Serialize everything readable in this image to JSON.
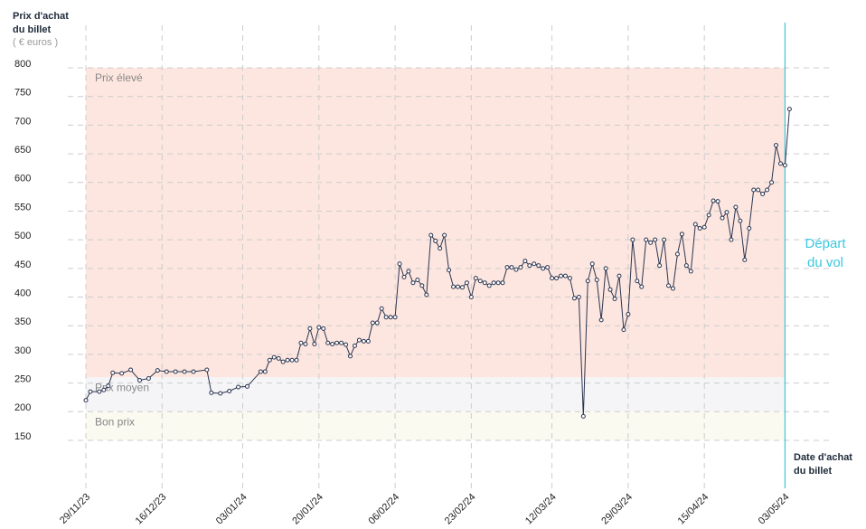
{
  "chart_data": {
    "type": "line",
    "y_label": [
      "Prix d'achat",
      "du billet"
    ],
    "y_unit": "( € euros )",
    "x_label": [
      "Date d'achat",
      "du billet"
    ],
    "annotation": {
      "x": "2024-05-03",
      "lines": [
        "Départ",
        "du vol"
      ],
      "color": "#3cc8e0"
    },
    "bands": [
      {
        "label": "Prix élevé",
        "from": 260,
        "to": 800,
        "color": "#fde6df"
      },
      {
        "label": "Prix moyen",
        "from": 200,
        "to": 260,
        "color": "#f5f5f7"
      },
      {
        "label": "Bon prix",
        "from": 150,
        "to": 200,
        "color": "#fafaf0"
      }
    ],
    "color": "#2b3550",
    "grid": true,
    "xlim": [
      "2023-11-29",
      "2024-05-13"
    ],
    "xticks": [
      {
        "value": "2023-11-29",
        "label": "29/11/23"
      },
      {
        "value": "2023-12-16",
        "label": "16/12/23"
      },
      {
        "value": "2024-01-03",
        "label": "03/01/24"
      },
      {
        "value": "2024-01-20",
        "label": "20/01/24"
      },
      {
        "value": "2024-02-06",
        "label": "06/02/24"
      },
      {
        "value": "2024-02-23",
        "label": "23/02/24"
      },
      {
        "value": "2024-03-12",
        "label": "12/03/24"
      },
      {
        "value": "2024-03-29",
        "label": "29/03/24"
      },
      {
        "value": "2024-04-15",
        "label": "15/04/24"
      },
      {
        "value": "2024-05-03",
        "label": "03/05/24"
      }
    ],
    "ylim": [
      150,
      800
    ],
    "yticks": [
      150,
      200,
      250,
      300,
      350,
      400,
      450,
      500,
      550,
      600,
      650,
      700,
      750,
      800
    ],
    "x": [
      "2023-11-29",
      "2023-11-30",
      "2023-12-02",
      "2023-12-03",
      "2023-12-04",
      "2023-12-05",
      "2023-12-07",
      "2023-12-09",
      "2023-12-11",
      "2023-12-13",
      "2023-12-15",
      "2023-12-17",
      "2023-12-19",
      "2023-12-21",
      "2023-12-23",
      "2023-12-26",
      "2023-12-27",
      "2023-12-29",
      "2023-12-31",
      "2024-01-02",
      "2024-01-04",
      "2024-01-07",
      "2024-01-08",
      "2024-01-09",
      "2024-01-10",
      "2024-01-11",
      "2024-01-12",
      "2024-01-13",
      "2024-01-14",
      "2024-01-15",
      "2024-01-16",
      "2024-01-17",
      "2024-01-18",
      "2024-01-19",
      "2024-01-20",
      "2024-01-21",
      "2024-01-22",
      "2024-01-23",
      "2024-01-24",
      "2024-01-25",
      "2024-01-26",
      "2024-01-27",
      "2024-01-28",
      "2024-01-29",
      "2024-01-30",
      "2024-01-31",
      "2024-02-01",
      "2024-02-02",
      "2024-02-03",
      "2024-02-04",
      "2024-02-05",
      "2024-02-06",
      "2024-02-07",
      "2024-02-08",
      "2024-02-09",
      "2024-02-10",
      "2024-02-11",
      "2024-02-12",
      "2024-02-13",
      "2024-02-14",
      "2024-02-15",
      "2024-02-16",
      "2024-02-17",
      "2024-02-18",
      "2024-02-19",
      "2024-02-20",
      "2024-02-21",
      "2024-02-22",
      "2024-02-23",
      "2024-02-24",
      "2024-02-25",
      "2024-02-26",
      "2024-02-27",
      "2024-02-28",
      "2024-02-29",
      "2024-03-01",
      "2024-03-02",
      "2024-03-03",
      "2024-03-04",
      "2024-03-05",
      "2024-03-06",
      "2024-03-07",
      "2024-03-08",
      "2024-03-09",
      "2024-03-10",
      "2024-03-11",
      "2024-03-12",
      "2024-03-13",
      "2024-03-14",
      "2024-03-15",
      "2024-03-16",
      "2024-03-17",
      "2024-03-18",
      "2024-03-19",
      "2024-03-20",
      "2024-03-21",
      "2024-03-22",
      "2024-03-23",
      "2024-03-24",
      "2024-03-25",
      "2024-03-26",
      "2024-03-27",
      "2024-03-28",
      "2024-03-29",
      "2024-03-30",
      "2024-03-31",
      "2024-04-01",
      "2024-04-02",
      "2024-04-03",
      "2024-04-04",
      "2024-04-05",
      "2024-04-06",
      "2024-04-07",
      "2024-04-08",
      "2024-04-09",
      "2024-04-10",
      "2024-04-11",
      "2024-04-12",
      "2024-04-13",
      "2024-04-14",
      "2024-04-15",
      "2024-04-16",
      "2024-04-17",
      "2024-04-18",
      "2024-04-19",
      "2024-04-20",
      "2024-04-21",
      "2024-04-22",
      "2024-04-23",
      "2024-04-24",
      "2024-04-25",
      "2024-04-26",
      "2024-04-27",
      "2024-04-28",
      "2024-04-29",
      "2024-04-30",
      "2024-05-01",
      "2024-05-02",
      "2024-05-03",
      "2024-05-04"
    ],
    "values": [
      220,
      235,
      235,
      238,
      245,
      268,
      267,
      273,
      255,
      258,
      272,
      270,
      270,
      270,
      270,
      273,
      233,
      232,
      236,
      243,
      244,
      270,
      270,
      290,
      295,
      293,
      287,
      290,
      290,
      290,
      320,
      318,
      345,
      318,
      347,
      345,
      320,
      318,
      320,
      320,
      317,
      297,
      315,
      325,
      323,
      323,
      355,
      355,
      380,
      365,
      365,
      365,
      458,
      435,
      445,
      425,
      430,
      420,
      404,
      508,
      498,
      485,
      508,
      447,
      418,
      418,
      417,
      425,
      400,
      433,
      428,
      425,
      420,
      425,
      425,
      425,
      452,
      452,
      448,
      452,
      463,
      455,
      458,
      455,
      450,
      452,
      433,
      433,
      437,
      437,
      433,
      398,
      400,
      192,
      428,
      458,
      430,
      360,
      450,
      413,
      397,
      437,
      343,
      370,
      500,
      428,
      418,
      500,
      495,
      500,
      455,
      500,
      420,
      415,
      475,
      510,
      455,
      445,
      527,
      520,
      522,
      543,
      568,
      567,
      538,
      548,
      500,
      557,
      533,
      465,
      520,
      587,
      587,
      580,
      587,
      600,
      665,
      633,
      630,
      728
    ]
  }
}
